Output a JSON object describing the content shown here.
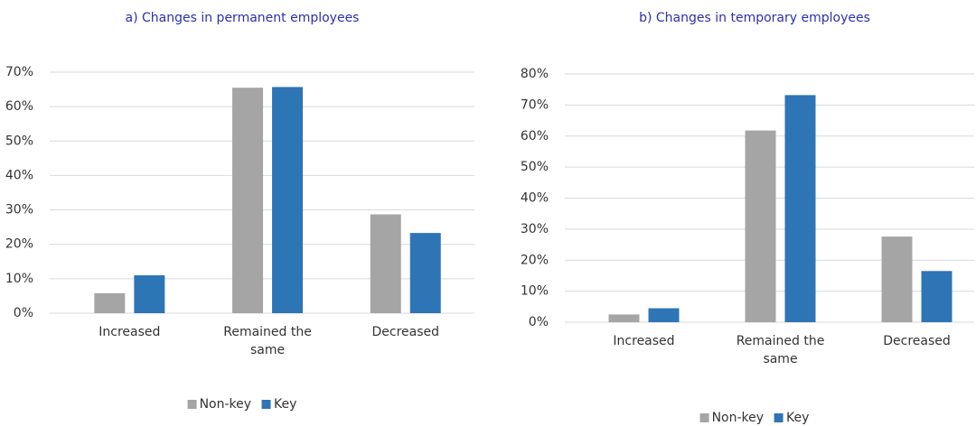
{
  "chart_data": [
    {
      "type": "bar",
      "title": "a) Changes in permanent employees",
      "categories": [
        "Increased",
        "Remained the same",
        "Decreased"
      ],
      "series": [
        {
          "name": "Non-key",
          "color": "#a5a5a5",
          "values": [
            5.8,
            65.5,
            28.7
          ]
        },
        {
          "name": "Key",
          "color": "#2e75b6",
          "values": [
            11,
            65.7,
            23.3
          ]
        }
      ],
      "ylim": [
        0,
        70
      ],
      "yticks": [
        {
          "value": 0,
          "label": "0%"
        },
        {
          "value": 10,
          "label": "10%"
        },
        {
          "value": 20,
          "label": "20%"
        },
        {
          "value": 30,
          "label": "30%"
        },
        {
          "value": 40,
          "label": "40%"
        },
        {
          "value": 50,
          "label": "50%"
        },
        {
          "value": 60,
          "label": "60%"
        },
        {
          "value": 70,
          "label": "70%"
        }
      ],
      "grid": true,
      "legend": "bottom"
    },
    {
      "type": "bar",
      "title": "b) Changes in temporary employees",
      "categories": [
        "Increased",
        "Remained the same",
        "Decreased"
      ],
      "series": [
        {
          "name": "Non-key",
          "color": "#a5a5a5",
          "values": [
            2.5,
            61.8,
            27.6
          ]
        },
        {
          "name": "Key",
          "color": "#2e75b6",
          "values": [
            4.5,
            73.2,
            16.5
          ]
        }
      ],
      "ylim": [
        0,
        80
      ],
      "yticks": [
        {
          "value": 0,
          "label": "0%"
        },
        {
          "value": 10,
          "label": "10%"
        },
        {
          "value": 20,
          "label": "20%"
        },
        {
          "value": 30,
          "label": "30%"
        },
        {
          "value": 40,
          "label": "40%"
        },
        {
          "value": 50,
          "label": "50%"
        },
        {
          "value": 60,
          "label": "60%"
        },
        {
          "value": 70,
          "label": "70%"
        },
        {
          "value": 80,
          "label": "80%"
        }
      ],
      "grid": true,
      "legend": "bottom"
    }
  ]
}
